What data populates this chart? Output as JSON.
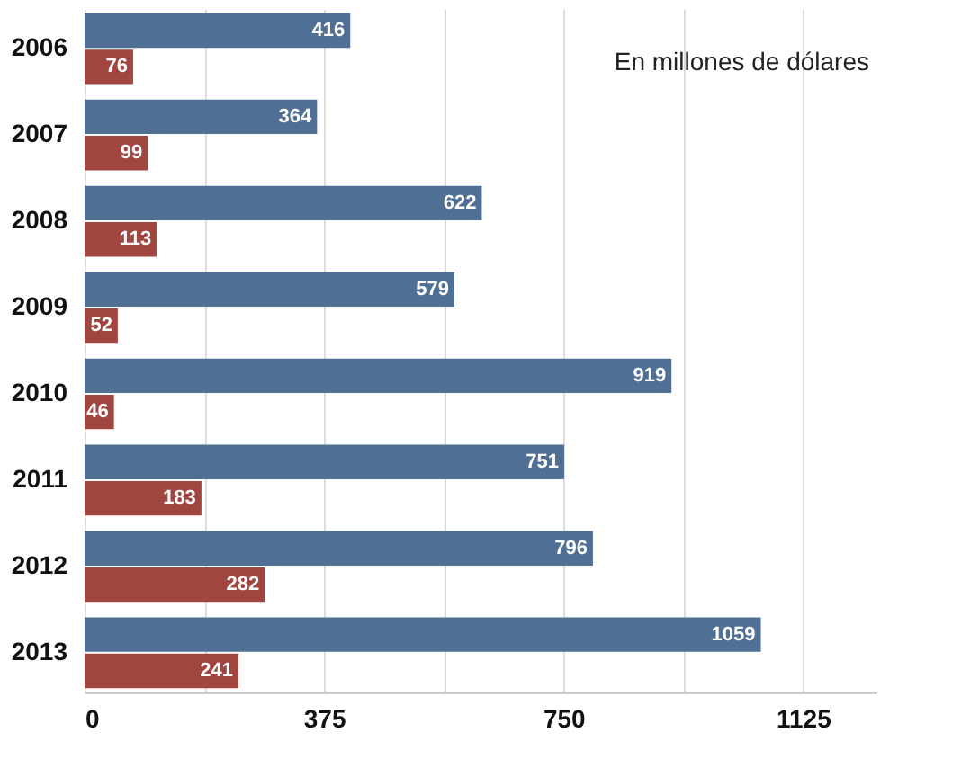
{
  "chart_data": {
    "type": "bar",
    "orientation": "horizontal",
    "categories": [
      "2006",
      "2007",
      "2008",
      "2009",
      "2010",
      "2011",
      "2012",
      "2013"
    ],
    "series": [
      {
        "color": "#4f6f94",
        "values": [
          416,
          364,
          622,
          579,
          919,
          751,
          796,
          1059
        ]
      },
      {
        "color": "#a0453f",
        "values": [
          76,
          99,
          113,
          52,
          46,
          183,
          282,
          241
        ]
      }
    ],
    "xlim": [
      0,
      1240
    ],
    "xticks": [
      0,
      {
        "value": 187.5,
        "label": null
      },
      375,
      {
        "value": 562.5,
        "label": null
      },
      750,
      {
        "value": 937.5,
        "label": null
      },
      1125
    ],
    "grid": "x",
    "data_labels": true,
    "legend": false,
    "annotations": [
      {
        "text": "En millones de dólares"
      }
    ]
  }
}
